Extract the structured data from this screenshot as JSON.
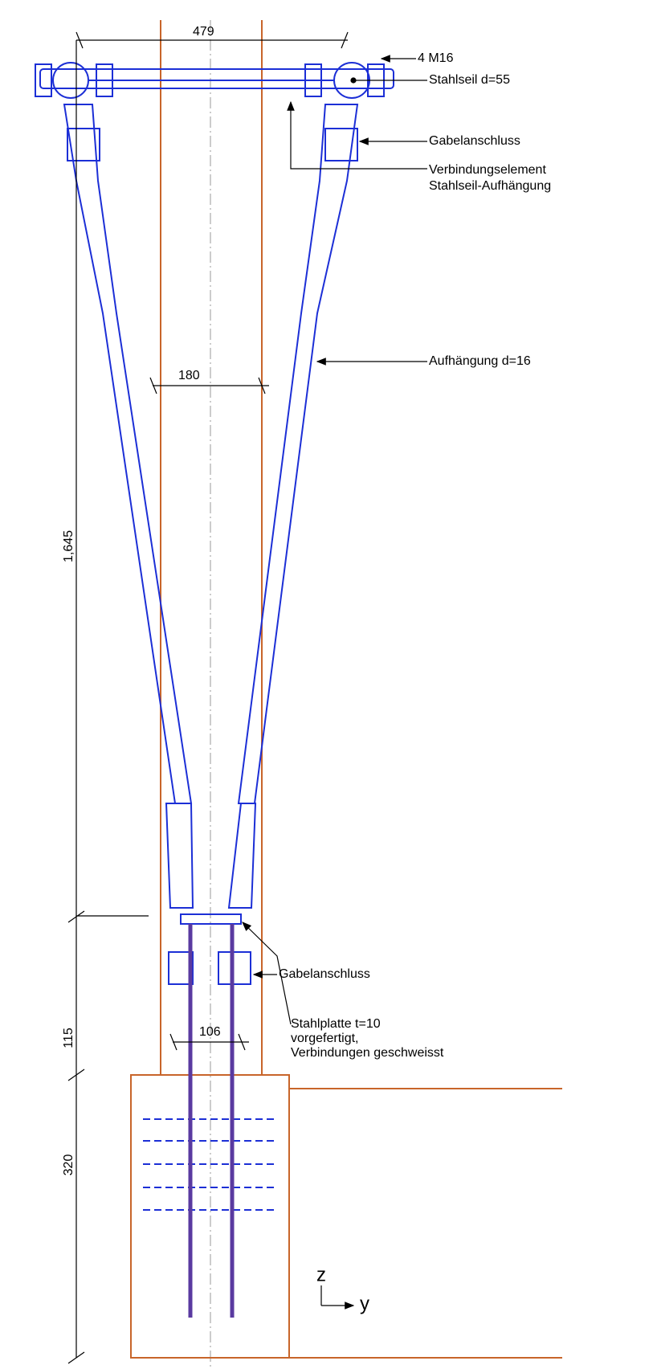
{
  "dimensions": {
    "cable_span": "479",
    "column_width": "180",
    "hanger_height": "1,645",
    "plate_offset": "115",
    "foundation_depth": "320",
    "rod_spacing": "106"
  },
  "labels": {
    "bolts": "4 M16",
    "cable": "Stahlseil d=55",
    "fork_top": "Gabelanschluss",
    "connector": [
      "Verbindungselement",
      "Stahlseil-Aufhängung"
    ],
    "hanger": "Aufhängung d=16",
    "fork_bottom": "Gabelanschluss",
    "plate": [
      "Stahlplatte t=10",
      "vorgefertigt,",
      "Verbindungen geschweisst"
    ]
  },
  "axes": {
    "z": "z",
    "y": "y"
  }
}
